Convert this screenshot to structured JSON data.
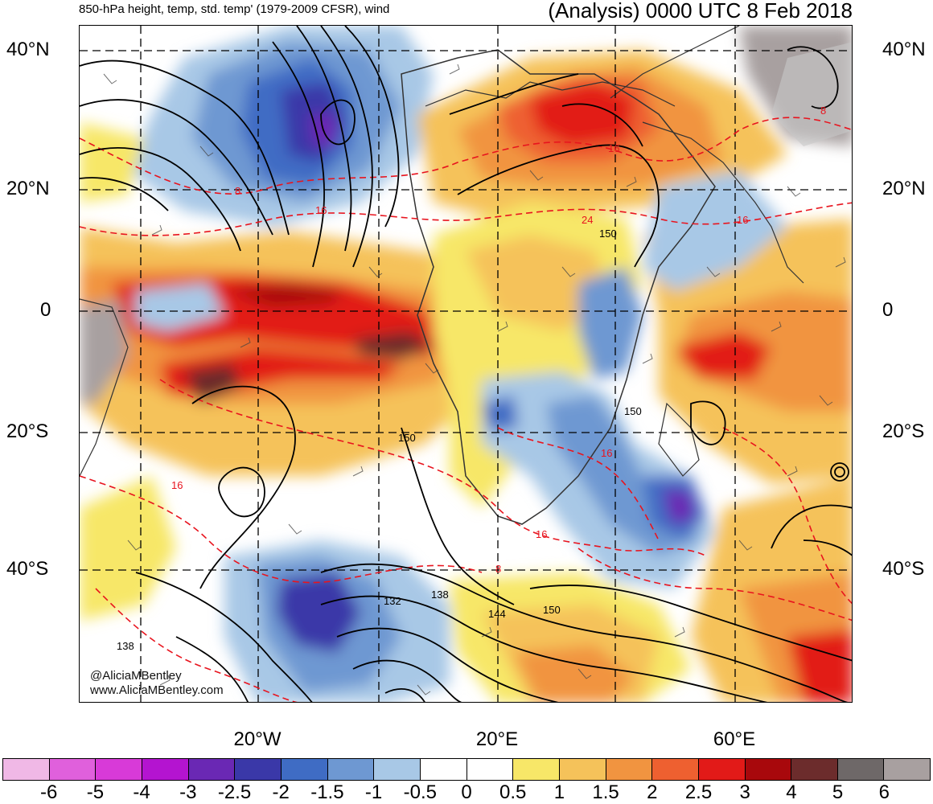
{
  "header": {
    "left_title": "850-hPa height, temp, std. temp' (1979-2009 CFSR), wind",
    "right_title": "(Analysis) 0000 UTC 8 Feb 2018"
  },
  "map": {
    "lat_labels": [
      "40°N",
      "20°N",
      "0",
      "20°S",
      "40°S"
    ],
    "lon_labels": [
      "20°W",
      "20°E",
      "60°E"
    ],
    "height_contour_labels": [
      "150",
      "150",
      "150",
      "132",
      "138",
      "144",
      "150",
      "138"
    ],
    "temp_contour_labels": [
      "8",
      "16",
      "16",
      "24",
      "16",
      "16",
      "16",
      "8",
      "8",
      "16",
      "8"
    ],
    "credits": [
      "@AliciaMBentley",
      "www.AliciaMBentley.com"
    ],
    "land_color": "#c8c8c8",
    "coast_color": "#333333",
    "height_contour_color": "#000000",
    "temp_contour_color": "#e8141e"
  },
  "colorbar": {
    "tick_labels": [
      "-6",
      "-5",
      "-4",
      "-3",
      "-2.5",
      "-2",
      "-1.5",
      "-1",
      "-0.5",
      "0",
      "0.5",
      "1",
      "1.5",
      "2",
      "2.5",
      "3",
      "4",
      "5",
      "6"
    ],
    "colors": [
      "#f0b8e6",
      "#e060dc",
      "#d83ad8",
      "#b414d0",
      "#6a28b4",
      "#3a38a8",
      "#3f6cc4",
      "#6e98d2",
      "#a8c8e6",
      "#ffffff",
      "#ffffff",
      "#f7e768",
      "#f5c25a",
      "#f19440",
      "#ee6030",
      "#e21a18",
      "#a8080c",
      "#6c2c2c",
      "#6e6868",
      "#a8a0a0"
    ]
  }
}
